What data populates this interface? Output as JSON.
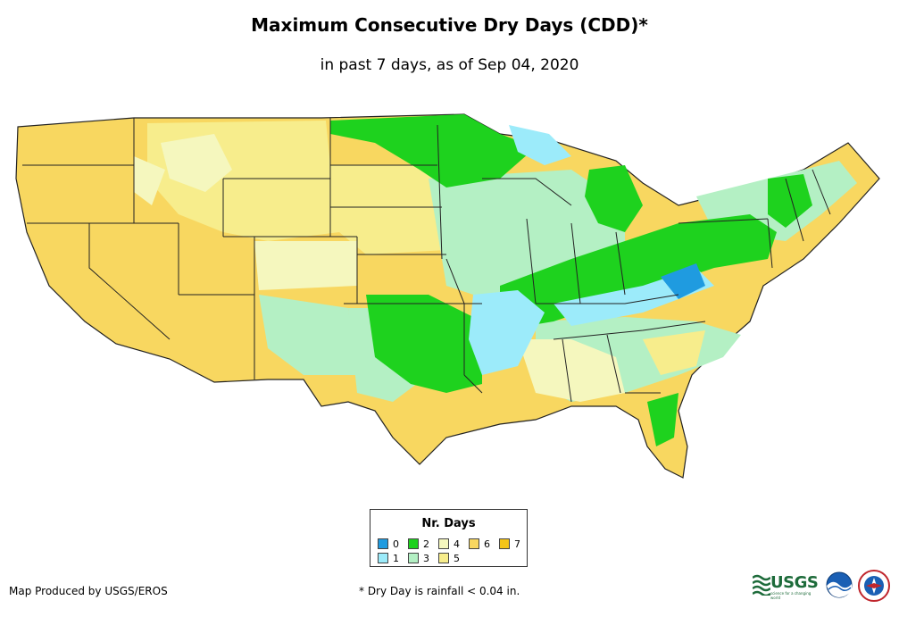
{
  "title": "Maximum Consecutive Dry Days (CDD)*",
  "subtitle": "in past 7 days, as of Sep 04, 2020",
  "legend": {
    "title": "Nr. Days",
    "items": [
      {
        "label": "0",
        "color": "#1f9be0"
      },
      {
        "label": "1",
        "color": "#9cebfa"
      },
      {
        "label": "2",
        "color": "#1ed21e"
      },
      {
        "label": "3",
        "color": "#b4f0c4"
      },
      {
        "label": "4",
        "color": "#f5f7be"
      },
      {
        "label": "5",
        "color": "#f7ed8c"
      },
      {
        "label": "6",
        "color": "#f8d760"
      },
      {
        "label": "7",
        "color": "#f5c518"
      }
    ]
  },
  "footer": {
    "credit": "Map Produced by USGS/EROS",
    "footnote": "* Dry Day is rainfall < 0.04 in."
  },
  "logos": {
    "usgs": "USGS",
    "usgs_tagline": "science for a changing world",
    "noaa": "noaa-logo",
    "nws": "nws-logo"
  },
  "colors": {
    "background": "#ffffff",
    "state_border": "#222222"
  }
}
